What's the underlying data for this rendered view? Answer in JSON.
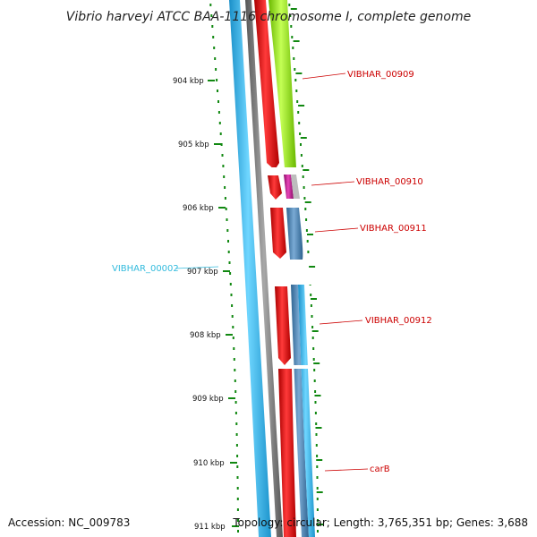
{
  "title": "Vibrio harveyi ATCC BAA-1116 chromosome I, complete genome",
  "accession": "Accession: NC_009783",
  "topology": "Topology: circular; Length: 3,765,351 bp; Genes: 3,688",
  "ticks": [
    "904 kbp",
    "905 kbp",
    "906 kbp",
    "907 kbp",
    "908 kbp",
    "909 kbp",
    "910 kbp",
    "911 kbp"
  ],
  "gene_labels": [
    {
      "text": "VIBHAR_00909",
      "color": "#cc0000"
    },
    {
      "text": "VIBHAR_00910",
      "color": "#cc0000"
    },
    {
      "text": "VIBHAR_00911",
      "color": "#cc0000"
    },
    {
      "text": "VIBHAR_00002",
      "color": "#33bbdd"
    },
    {
      "text": "VIBHAR_00912",
      "color": "#cc0000"
    },
    {
      "text": "carB",
      "color": "#cc0000"
    }
  ],
  "colors": {
    "cds_forward": "#ff1111",
    "cds_reverse": "#33bbee",
    "gene_green": "#99ee22",
    "gene_magenta": "#cc2299",
    "gene_steelblue": "#4d86b8",
    "backbone": "#777777",
    "tick_green": "#118811"
  }
}
